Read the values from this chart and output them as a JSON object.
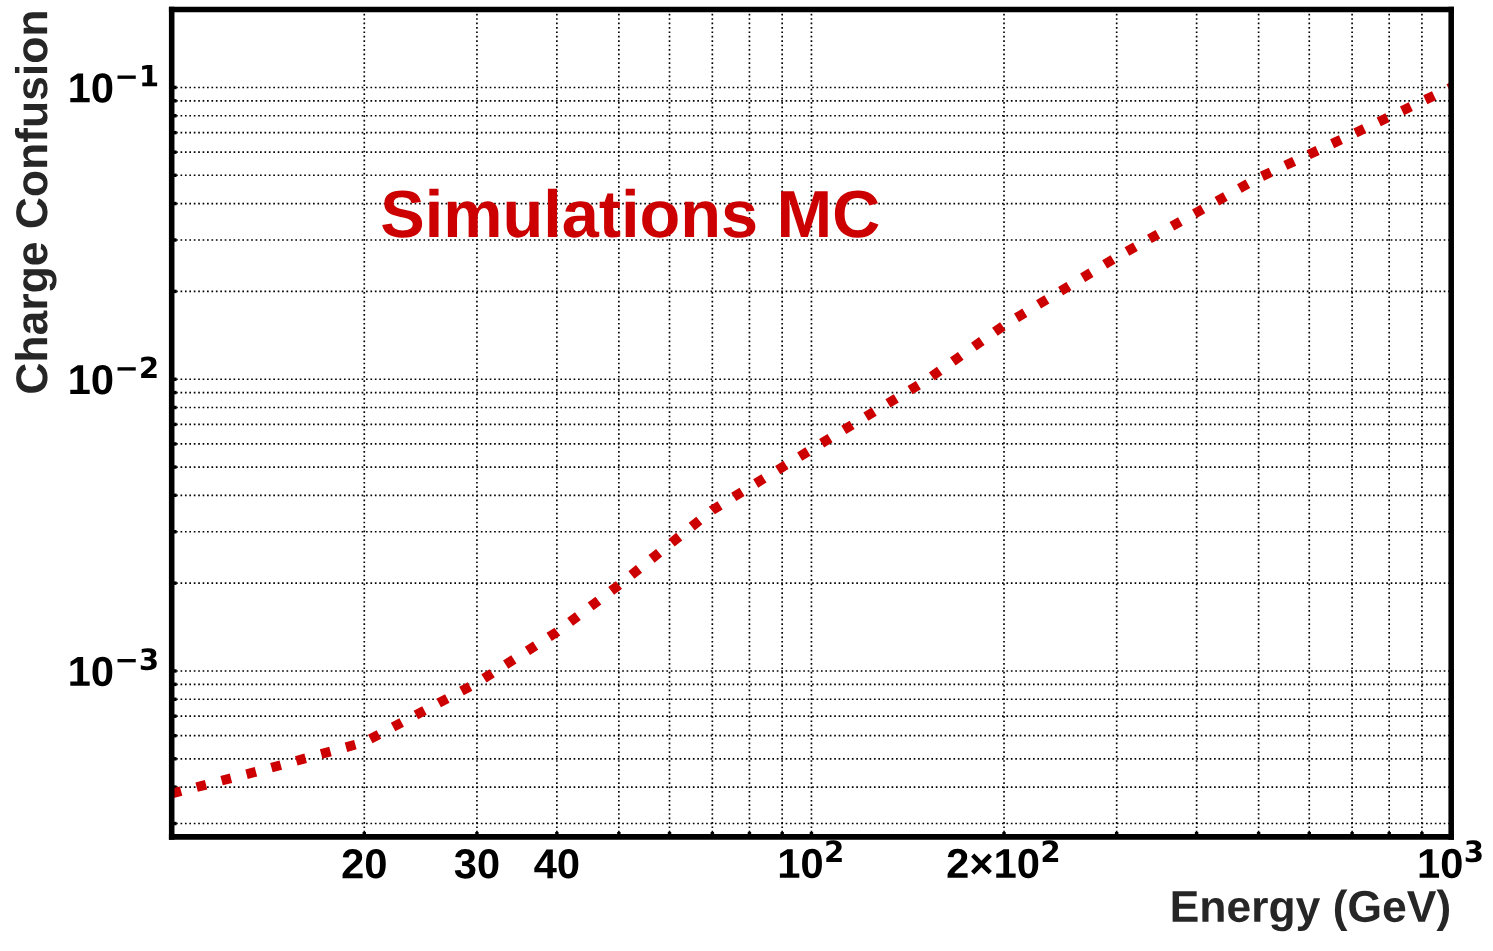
{
  "chart_data": {
    "type": "line",
    "xlabel": "Energy (GeV)",
    "ylabel": "Charge Confusion",
    "log": "xy",
    "grid": true,
    "line_style": "dotted",
    "marker": "none",
    "annotations": [
      "Simulations MC"
    ],
    "xlim": [
      10,
      1000
    ],
    "ylim": [
      0.00027,
      0.185
    ],
    "xticks": [
      20,
      30,
      40,
      {
        "value": 50,
        "label": null
      },
      {
        "value": 60,
        "label": null
      },
      {
        "value": 70,
        "label": null
      },
      {
        "value": 80,
        "label": null
      },
      {
        "value": 90,
        "label": null
      },
      {
        "value": 100,
        "label": "10$^{2}$"
      },
      {
        "value": 200,
        "label": "2×10$^{2}$"
      },
      {
        "value": 300,
        "label": null
      },
      {
        "value": 400,
        "label": null
      },
      {
        "value": 500,
        "label": null
      },
      {
        "value": 600,
        "label": null
      },
      {
        "value": 700,
        "label": null
      },
      {
        "value": 800,
        "label": null
      },
      {
        "value": 900,
        "label": null
      },
      {
        "value": 1000,
        "label": "10$^{3}$"
      }
    ],
    "yticks": [
      {
        "value": 0.0003,
        "label": null
      },
      {
        "value": 0.0004,
        "label": null
      },
      {
        "value": 0.0005,
        "label": null
      },
      {
        "value": 0.0006,
        "label": null
      },
      {
        "value": 0.0007,
        "label": null
      },
      {
        "value": 0.0008,
        "label": null
      },
      {
        "value": 0.0009,
        "label": null
      },
      {
        "value": 0.001,
        "label": "10$^{−3}$"
      },
      {
        "value": 0.002,
        "label": null
      },
      {
        "value": 0.003,
        "label": null
      },
      {
        "value": 0.004,
        "label": null
      },
      {
        "value": 0.005,
        "label": null
      },
      {
        "value": 0.006,
        "label": null
      },
      {
        "value": 0.007,
        "label": null
      },
      {
        "value": 0.008,
        "label": null
      },
      {
        "value": 0.009,
        "label": null
      },
      {
        "value": 0.01,
        "label": "10$^{−2}$"
      },
      {
        "value": 0.02,
        "label": null
      },
      {
        "value": 0.03,
        "label": null
      },
      {
        "value": 0.04,
        "label": null
      },
      {
        "value": 0.05,
        "label": null
      },
      {
        "value": 0.06,
        "label": null
      },
      {
        "value": 0.07,
        "label": null
      },
      {
        "value": 0.08,
        "label": null
      },
      {
        "value": 0.09,
        "label": null
      },
      {
        "value": 0.1,
        "label": "10$^{−1}$"
      }
    ],
    "series": [
      {
        "color": "#cc0000",
        "x": [
          10,
          14,
          20,
          30,
          40,
          50,
          70,
          100,
          150,
          200,
          300,
          500,
          700,
          1000
        ],
        "values": [
          0.00038,
          0.00046,
          0.00057,
          0.00091,
          0.00136,
          0.00197,
          0.00356,
          0.00575,
          0.0098,
          0.0153,
          0.0262,
          0.049,
          0.069,
          0.1
        ]
      }
    ]
  }
}
